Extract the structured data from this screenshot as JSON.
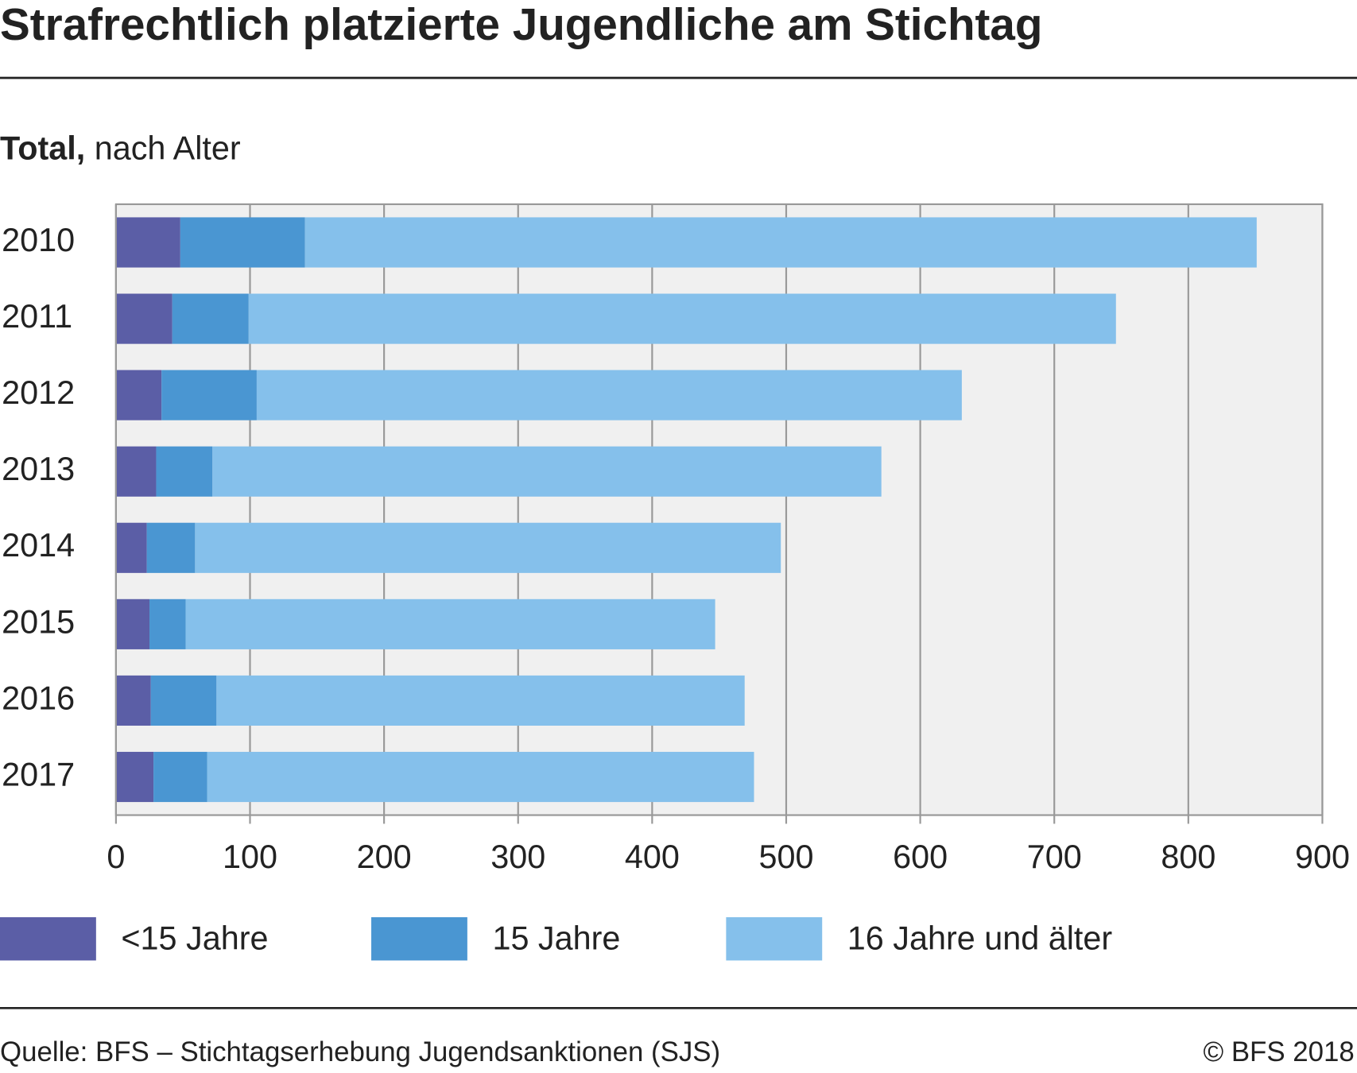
{
  "chart_data": {
    "type": "stacked_barh",
    "title": "Strafrechtlich platzierte Jugendliche am Stichtag",
    "subtitle_bold": "Total,",
    "subtitle": "nach Alter",
    "categories": [
      "2010",
      "2011",
      "2012",
      "2013",
      "2014",
      "2015",
      "2016",
      "2017"
    ],
    "series": [
      {
        "name": "<15 Jahre",
        "color": "#5b5ea6",
        "values": [
          48,
          42,
          34,
          30,
          23,
          25,
          26,
          28
        ]
      },
      {
        "name": "15 Jahre",
        "color": "#4a96d2",
        "values": [
          93,
          57,
          71,
          42,
          36,
          27,
          49,
          40
        ]
      },
      {
        "name": "16 Jahre und älter",
        "color": "#85c0eb",
        "values": [
          710,
          647,
          526,
          499,
          437,
          395,
          394,
          408
        ]
      }
    ],
    "xlim": [
      0,
      900
    ],
    "xticks": [
      0,
      100,
      200,
      300,
      400,
      500,
      600,
      700,
      800,
      900
    ],
    "grid": true,
    "source": "Quelle: BFS – Stichtagserhebung Jugendsanktionen (SJS)",
    "copyright": "© BFS 2018"
  }
}
